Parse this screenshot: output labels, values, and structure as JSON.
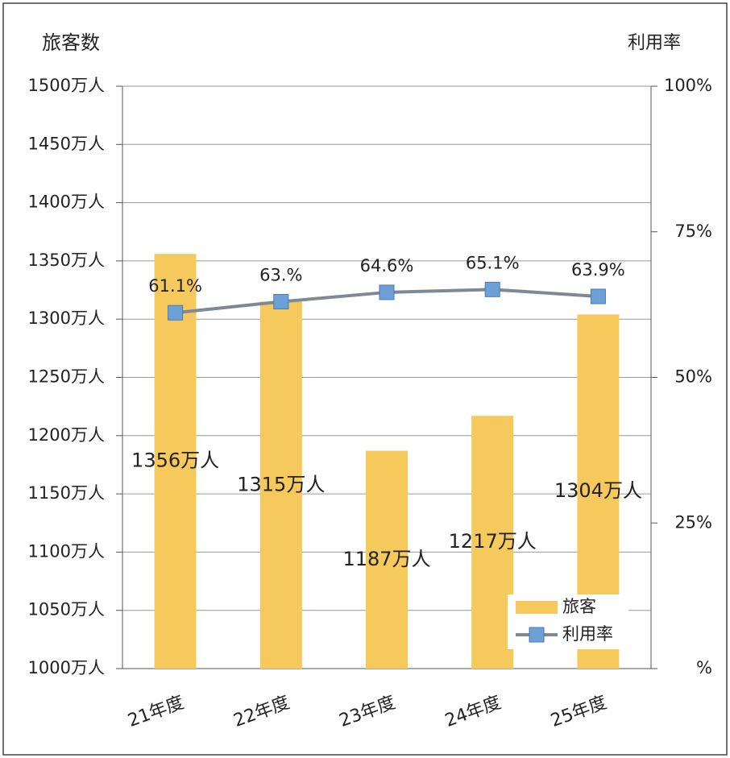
{
  "chart_data": {
    "type": "bar",
    "y_label": "旅客数",
    "y2_label": "利用率",
    "categories": [
      "21年度",
      "22年度",
      "23年度",
      "24年度",
      "25年度"
    ],
    "series": [
      {
        "name": "旅客",
        "type": "bar",
        "color": "#f6c95c",
        "values": [
          1356,
          1315,
          1187,
          1217,
          1304
        ],
        "value_labels": [
          "1356万人",
          "1315万人",
          "1187万人",
          "1217万人",
          "1304万人"
        ]
      },
      {
        "name": "利用率",
        "type": "line",
        "axis": "y2",
        "color": "#7d8a94",
        "marker_color": "#6ea0d8",
        "values": [
          61.1,
          63,
          64.6,
          65.1,
          63.9
        ],
        "value_labels": [
          "61.1%",
          "63.%",
          "64.6%",
          "65.1%",
          "63.9%"
        ]
      }
    ],
    "ylim": [
      1000,
      1500
    ],
    "yticks": [
      {
        "value": 1000,
        "label": "1000万人"
      },
      {
        "value": 1050,
        "label": "1050万人"
      },
      {
        "value": 1100,
        "label": "1100万人"
      },
      {
        "value": 1150,
        "label": "1150万人"
      },
      {
        "value": 1200,
        "label": "1200万人"
      },
      {
        "value": 1250,
        "label": "1250万人"
      },
      {
        "value": 1300,
        "label": "1300万人"
      },
      {
        "value": 1350,
        "label": "1350万人"
      },
      {
        "value": 1400,
        "label": "1400万人"
      },
      {
        "value": 1450,
        "label": "1450万人"
      },
      {
        "value": 1500,
        "label": "1500万人"
      }
    ],
    "y2lim": [
      0,
      100
    ],
    "y2ticks": [
      {
        "value": 0,
        "label": "%"
      },
      {
        "value": 25,
        "label": "25%"
      },
      {
        "value": 50,
        "label": "50%"
      },
      {
        "value": 75,
        "label": "75%"
      },
      {
        "value": 100,
        "label": "100%"
      }
    ],
    "grid": true,
    "legend": "lower right"
  }
}
